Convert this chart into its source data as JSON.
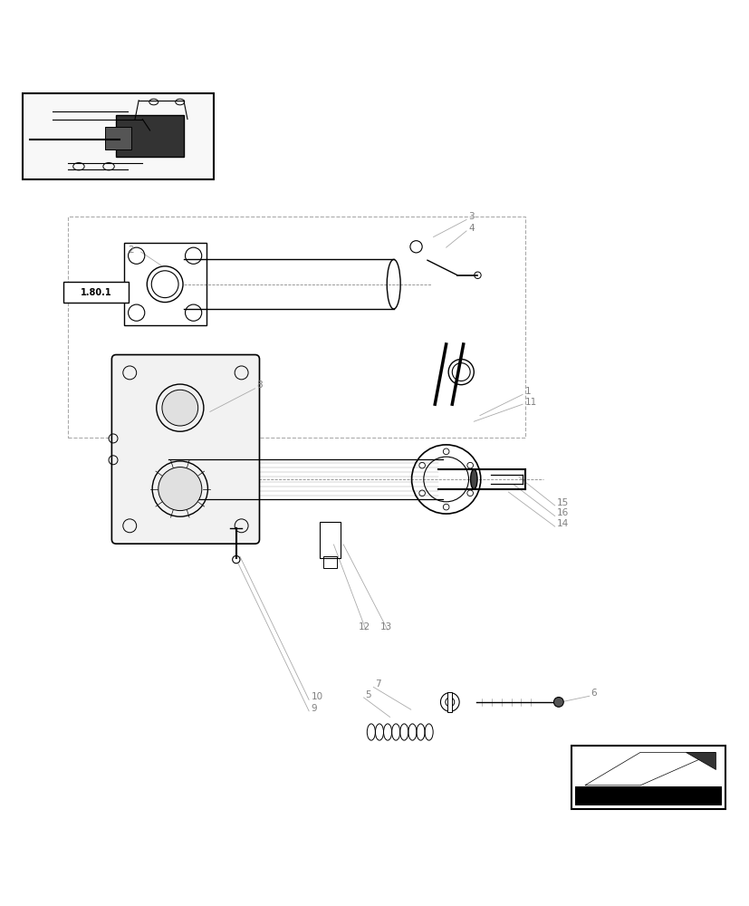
{
  "bg_color": "#ffffff",
  "line_color": "#000000",
  "light_line_color": "#555555",
  "label_color": "#808080",
  "fig_width": 8.28,
  "fig_height": 10.0,
  "dpi": 100
}
